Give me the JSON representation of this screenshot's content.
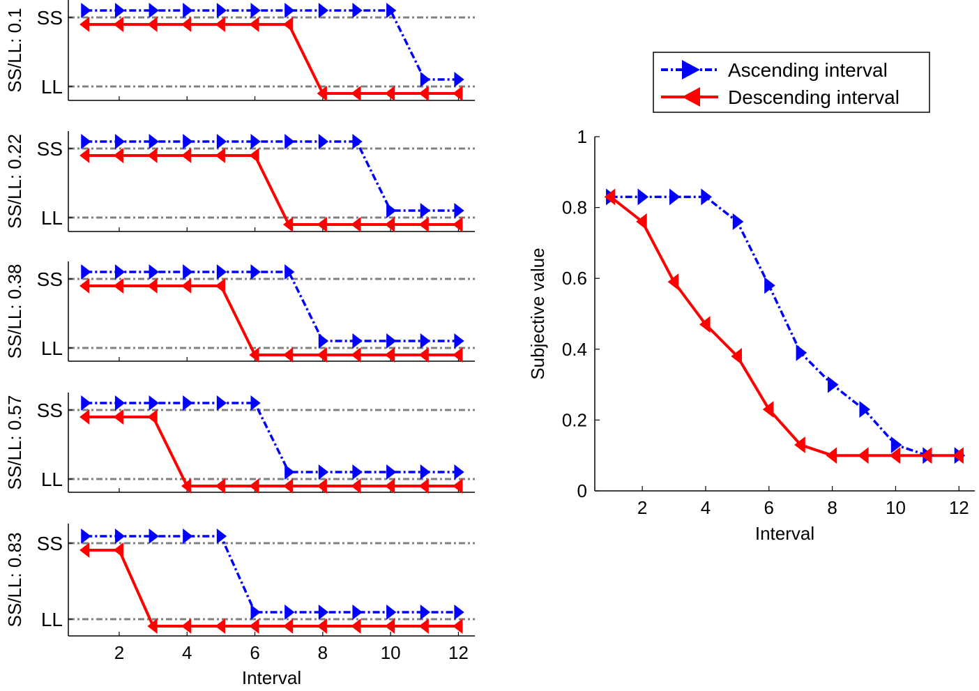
{
  "legend": {
    "ascending_label": "Ascending interval",
    "descending_label": "Descending interval"
  },
  "colors": {
    "ascending": "#0000ff",
    "descending": "#ff0000",
    "reference_line": "#808080",
    "axis": "#000000"
  },
  "chart_data": [
    {
      "type": "line",
      "ylabel": "SS/LL: 0.1",
      "ytick_labels": [
        "SS",
        "LL"
      ],
      "x": [
        1,
        2,
        3,
        4,
        5,
        6,
        7,
        8,
        9,
        10,
        11,
        12
      ],
      "series": [
        {
          "name": "Ascending interval",
          "values": [
            "SS",
            "SS",
            "SS",
            "SS",
            "SS",
            "SS",
            "SS",
            "SS",
            "SS",
            "SS",
            "LL",
            "LL"
          ]
        },
        {
          "name": "Descending interval",
          "values": [
            "SS",
            "SS",
            "SS",
            "SS",
            "SS",
            "SS",
            "SS",
            "LL",
            "LL",
            "LL",
            "LL",
            "LL"
          ]
        }
      ]
    },
    {
      "type": "line",
      "ylabel": "SS/LL: 0.22",
      "ytick_labels": [
        "SS",
        "LL"
      ],
      "x": [
        1,
        2,
        3,
        4,
        5,
        6,
        7,
        8,
        9,
        10,
        11,
        12
      ],
      "series": [
        {
          "name": "Ascending interval",
          "values": [
            "SS",
            "SS",
            "SS",
            "SS",
            "SS",
            "SS",
            "SS",
            "SS",
            "SS",
            "LL",
            "LL",
            "LL"
          ]
        },
        {
          "name": "Descending interval",
          "values": [
            "SS",
            "SS",
            "SS",
            "SS",
            "SS",
            "SS",
            "LL",
            "LL",
            "LL",
            "LL",
            "LL",
            "LL"
          ]
        }
      ]
    },
    {
      "type": "line",
      "ylabel": "SS/LL: 0.38",
      "ytick_labels": [
        "SS",
        "LL"
      ],
      "x": [
        1,
        2,
        3,
        4,
        5,
        6,
        7,
        8,
        9,
        10,
        11,
        12
      ],
      "series": [
        {
          "name": "Ascending interval",
          "values": [
            "SS",
            "SS",
            "SS",
            "SS",
            "SS",
            "SS",
            "SS",
            "LL",
            "LL",
            "LL",
            "LL",
            "LL"
          ]
        },
        {
          "name": "Descending interval",
          "values": [
            "SS",
            "SS",
            "SS",
            "SS",
            "SS",
            "LL",
            "LL",
            "LL",
            "LL",
            "LL",
            "LL",
            "LL"
          ]
        }
      ]
    },
    {
      "type": "line",
      "ylabel": "SS/LL: 0.57",
      "ytick_labels": [
        "SS",
        "LL"
      ],
      "x": [
        1,
        2,
        3,
        4,
        5,
        6,
        7,
        8,
        9,
        10,
        11,
        12
      ],
      "series": [
        {
          "name": "Ascending interval",
          "values": [
            "SS",
            "SS",
            "SS",
            "SS",
            "SS",
            "SS",
            "LL",
            "LL",
            "LL",
            "LL",
            "LL",
            "LL"
          ]
        },
        {
          "name": "Descending interval",
          "values": [
            "SS",
            "SS",
            "SS",
            "LL",
            "LL",
            "LL",
            "LL",
            "LL",
            "LL",
            "LL",
            "LL",
            "LL"
          ]
        }
      ]
    },
    {
      "type": "line",
      "ylabel": "SS/LL: 0.83",
      "xlabel": "Interval",
      "ytick_labels": [
        "SS",
        "LL"
      ],
      "xticks": [
        2,
        4,
        6,
        8,
        10,
        12
      ],
      "x": [
        1,
        2,
        3,
        4,
        5,
        6,
        7,
        8,
        9,
        10,
        11,
        12
      ],
      "series": [
        {
          "name": "Ascending interval",
          "values": [
            "SS",
            "SS",
            "SS",
            "SS",
            "SS",
            "LL",
            "LL",
            "LL",
            "LL",
            "LL",
            "LL",
            "LL"
          ]
        },
        {
          "name": "Descending interval",
          "values": [
            "SS",
            "SS",
            "LL",
            "LL",
            "LL",
            "LL",
            "LL",
            "LL",
            "LL",
            "LL",
            "LL",
            "LL"
          ]
        }
      ]
    },
    {
      "type": "line",
      "xlabel": "Interval",
      "ylabel": "Subjective value",
      "xlim": [
        0.5,
        12.5
      ],
      "ylim": [
        0,
        1
      ],
      "xticks": [
        2,
        4,
        6,
        8,
        10,
        12
      ],
      "yticks": [
        0,
        0.2,
        0.4,
        0.6,
        0.8,
        1
      ],
      "ytick_labels": [
        "0",
        "0.2",
        "0.4",
        "0.6",
        "0.8",
        "1"
      ],
      "legend_position": "above",
      "x": [
        1,
        2,
        3,
        4,
        5,
        6,
        7,
        8,
        9,
        10,
        11,
        12
      ],
      "series": [
        {
          "name": "Ascending interval",
          "values": [
            0.83,
            0.83,
            0.83,
            0.83,
            0.76,
            0.58,
            0.39,
            0.3,
            0.23,
            0.13,
            0.1,
            0.1
          ]
        },
        {
          "name": "Descending interval",
          "values": [
            0.83,
            0.76,
            0.59,
            0.47,
            0.38,
            0.23,
            0.13,
            0.1,
            0.1,
            0.1,
            0.1,
            0.1
          ]
        }
      ]
    }
  ]
}
